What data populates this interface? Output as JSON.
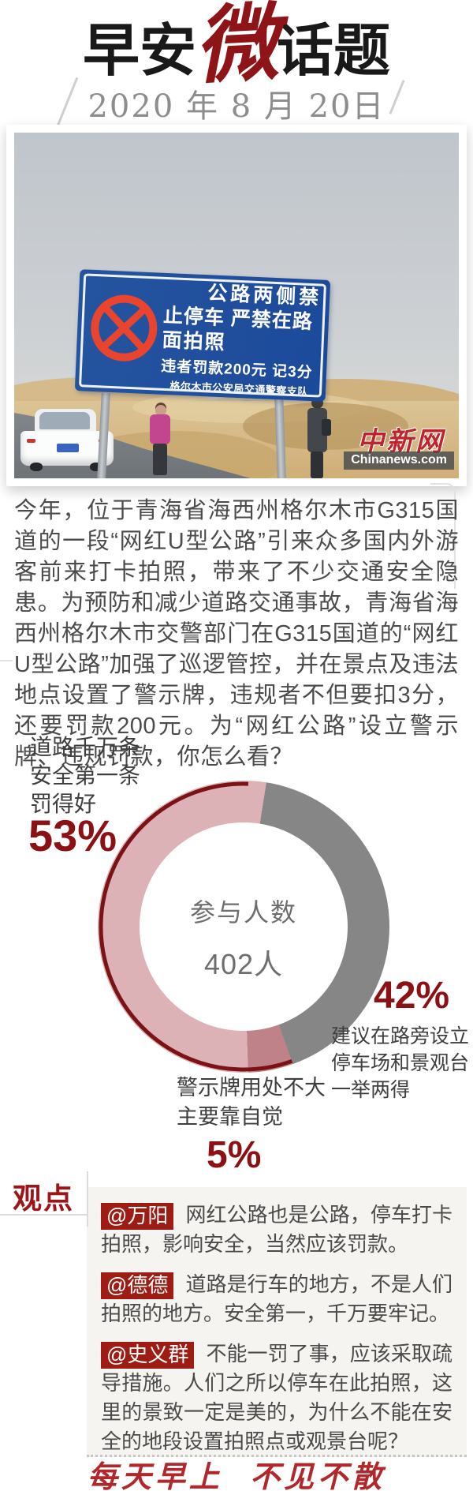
{
  "header": {
    "title_left": "早安",
    "title_accent": "微",
    "title_right": "话题",
    "date": "2020 年 8 月 20日"
  },
  "photo": {
    "sign": {
      "line1": "公路两侧禁",
      "line2": "止停车 严禁在路",
      "line3": "面拍照",
      "penalty": "违者罚款200元  记3分",
      "authority": "格尔木市公安局交通警察支队"
    },
    "watermark": {
      "logo": "中新网",
      "site": "Chinanews.com"
    }
  },
  "article": {
    "paragraph": "今年，位于青海省海西州格尔木市G315国道的一段“网红U型公路”引来众多国内外游客前来打卡拍照，带来了不少交通安全隐患。为预防和减少道路交通事故，青海省海西州格尔木市交警部门在G315国道的“网红U型公路”加强了巡逻管控，并在景点及违法地点设置了警示牌，违规者不但要扣3分，还要罚款200元。为“网红公路”设立警示牌、违规罚款，你怎么看？"
  },
  "chart_data": {
    "type": "pie",
    "subtype": "donut",
    "center_label": "参与人数",
    "center_value": "402人",
    "start_angle_deg": 9,
    "segments": [
      {
        "name": "罚得好",
        "lines": [
          "道路千万条",
          "安全第一条",
          "罚得好"
        ],
        "value": 53,
        "percent_label": "53%",
        "color": "#dcb2b7"
      },
      {
        "name": "建议设停车场和景观台",
        "lines": [
          "建议在路旁设立",
          "停车场和景观台",
          "一举两得"
        ],
        "value": 42,
        "percent_label": "42%",
        "color": "#868686"
      },
      {
        "name": "警示牌用处不大",
        "lines": [
          "警示牌用处不大",
          "主要靠自觉"
        ],
        "value": 5,
        "percent_label": "5%",
        "color": "#bf8289"
      }
    ],
    "draw_order": [
      1,
      2,
      0
    ],
    "edge_arc": {
      "start_value": 42,
      "sweep_value": 56,
      "color": "#7a1216"
    }
  },
  "opinions": {
    "heading": "观点",
    "items": [
      {
        "handle": "@万阳",
        "text": "网红公路也是公路，停车打卡拍照，影响安全，当然应该罚款。"
      },
      {
        "handle": "@德德",
        "text": "道路是行车的地方，不是人们拍照的地方。安全第一，千万要牢记。"
      },
      {
        "handle": "@史义群",
        "text": "不能一罚了事，应该采取疏导措施。人们之所以停车在此拍照，这里的景致一定是美的，为什么不能在安全的地段设置拍照点或观景台呢？"
      }
    ]
  },
  "footer": {
    "slogan": "每天早上  不见不散"
  },
  "colors": {
    "accent_dark_red": "#8c1115",
    "badge_red": "#9e1c13",
    "footer_red": "#b1282c",
    "sign_blue": "#1f4fa0",
    "no_stopping_red": "#e8442e",
    "panel_bg": "#f6f4f1"
  }
}
